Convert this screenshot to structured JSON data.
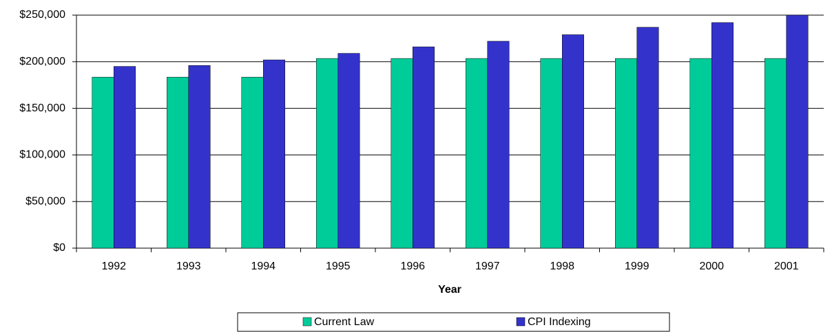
{
  "chart_data": {
    "type": "bar",
    "x_label": "Year",
    "categories": [
      "1992",
      "1993",
      "1994",
      "1995",
      "1996",
      "1997",
      "1998",
      "1999",
      "2000",
      "2001"
    ],
    "series": [
      {
        "name": "Current Law",
        "color": "#00cc99",
        "values": [
          183500,
          183500,
          183500,
          203500,
          203500,
          203500,
          203500,
          203500,
          203500,
          203500
        ]
      },
      {
        "name": "CPI Indexing",
        "color": "#3333cc",
        "values": [
          195000,
          196000,
          202000,
          209000,
          216000,
          222000,
          229000,
          237000,
          242000,
          250000
        ]
      }
    ],
    "ylim": [
      0,
      250000
    ],
    "yticks": [
      {
        "value": 0,
        "label": "$0"
      },
      {
        "value": 50000,
        "label": "$50,000"
      },
      {
        "value": 100000,
        "label": "$100,000"
      },
      {
        "value": 150000,
        "label": "$150,000"
      },
      {
        "value": 200000,
        "label": "$200,000"
      },
      {
        "value": 250000,
        "label": "$250,000"
      }
    ],
    "grid": true,
    "legend": "bottom"
  }
}
